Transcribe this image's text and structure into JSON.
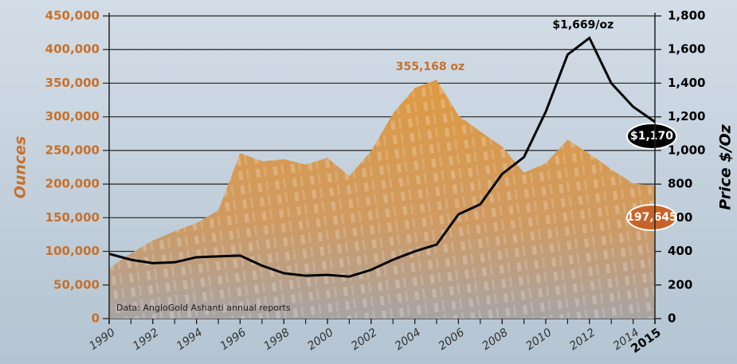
{
  "chart_data": {
    "type": "area-line",
    "x": [
      1990,
      1991,
      1992,
      1993,
      1994,
      1995,
      1996,
      1997,
      1998,
      1999,
      2000,
      2001,
      2002,
      2003,
      2004,
      2005,
      2006,
      2007,
      2008,
      2009,
      2010,
      2011,
      2012,
      2013,
      2014,
      2015
    ],
    "xlim": [
      1990,
      2015
    ],
    "xticks": [
      1990,
      1992,
      1994,
      1996,
      1998,
      2000,
      2002,
      2004,
      2006,
      2008,
      2010,
      2012,
      2014,
      2015
    ],
    "series": [
      {
        "name": "Ounces",
        "color": "#d9953f",
        "axis": "y",
        "values": [
          75000,
          97000,
          116000,
          130000,
          142000,
          161000,
          246000,
          234000,
          237000,
          229000,
          239000,
          212000,
          249000,
          305000,
          343000,
          355168,
          302000,
          278000,
          256000,
          217000,
          231000,
          266000,
          245000,
          222000,
          201000,
          197645
        ],
        "value_labels": [
          null,
          null,
          null,
          null,
          null,
          null,
          null,
          null,
          null,
          null,
          null,
          null,
          null,
          null,
          null,
          "355,168 oz",
          null,
          null,
          null,
          null,
          null,
          null,
          null,
          null,
          null,
          "197,645"
        ]
      },
      {
        "name": "Price $/Oz",
        "color": "#000000",
        "axis": "y2",
        "values": [
          385,
          350,
          330,
          335,
          365,
          370,
          375,
          315,
          270,
          255,
          260,
          250,
          290,
          350,
          400,
          440,
          620,
          680,
          860,
          960,
          1230,
          1570,
          1669,
          1400,
          1260,
          1170
        ],
        "value_labels": [
          null,
          null,
          null,
          null,
          null,
          null,
          null,
          null,
          null,
          null,
          null,
          null,
          null,
          null,
          null,
          null,
          null,
          null,
          null,
          null,
          null,
          null,
          "$1,669/oz",
          null,
          null,
          "$1,170"
        ]
      }
    ],
    "ylabel": "Ounces",
    "y2label": "Price $/Oz",
    "ylim": [
      0,
      450000
    ],
    "yticks": [
      0,
      {
        "value": 50000,
        "label": "50,000"
      },
      {
        "value": 100000,
        "label": "100,000"
      },
      {
        "value": 150000,
        "label": "150,000"
      },
      {
        "value": 200000,
        "label": "200,000"
      },
      {
        "value": 250000,
        "label": "250,000"
      },
      {
        "value": 300000,
        "label": "300,000"
      },
      {
        "value": 350000,
        "label": "350,000"
      },
      {
        "value": 400000,
        "label": "400,000"
      },
      {
        "value": 450000,
        "label": "450,000"
      }
    ],
    "y2lim": [
      0,
      1800
    ],
    "y2ticks": [
      0,
      200,
      400,
      600,
      800,
      {
        "value": 1000,
        "label": "1,000"
      },
      {
        "value": 1200,
        "label": "1,200"
      },
      {
        "value": 1400,
        "label": "1,400"
      },
      {
        "value": 1600,
        "label": "1,600"
      },
      {
        "value": 1800,
        "label": "1,800"
      }
    ],
    "grid": true,
    "source": "Data: AngloGold Ashanti annual reports"
  }
}
